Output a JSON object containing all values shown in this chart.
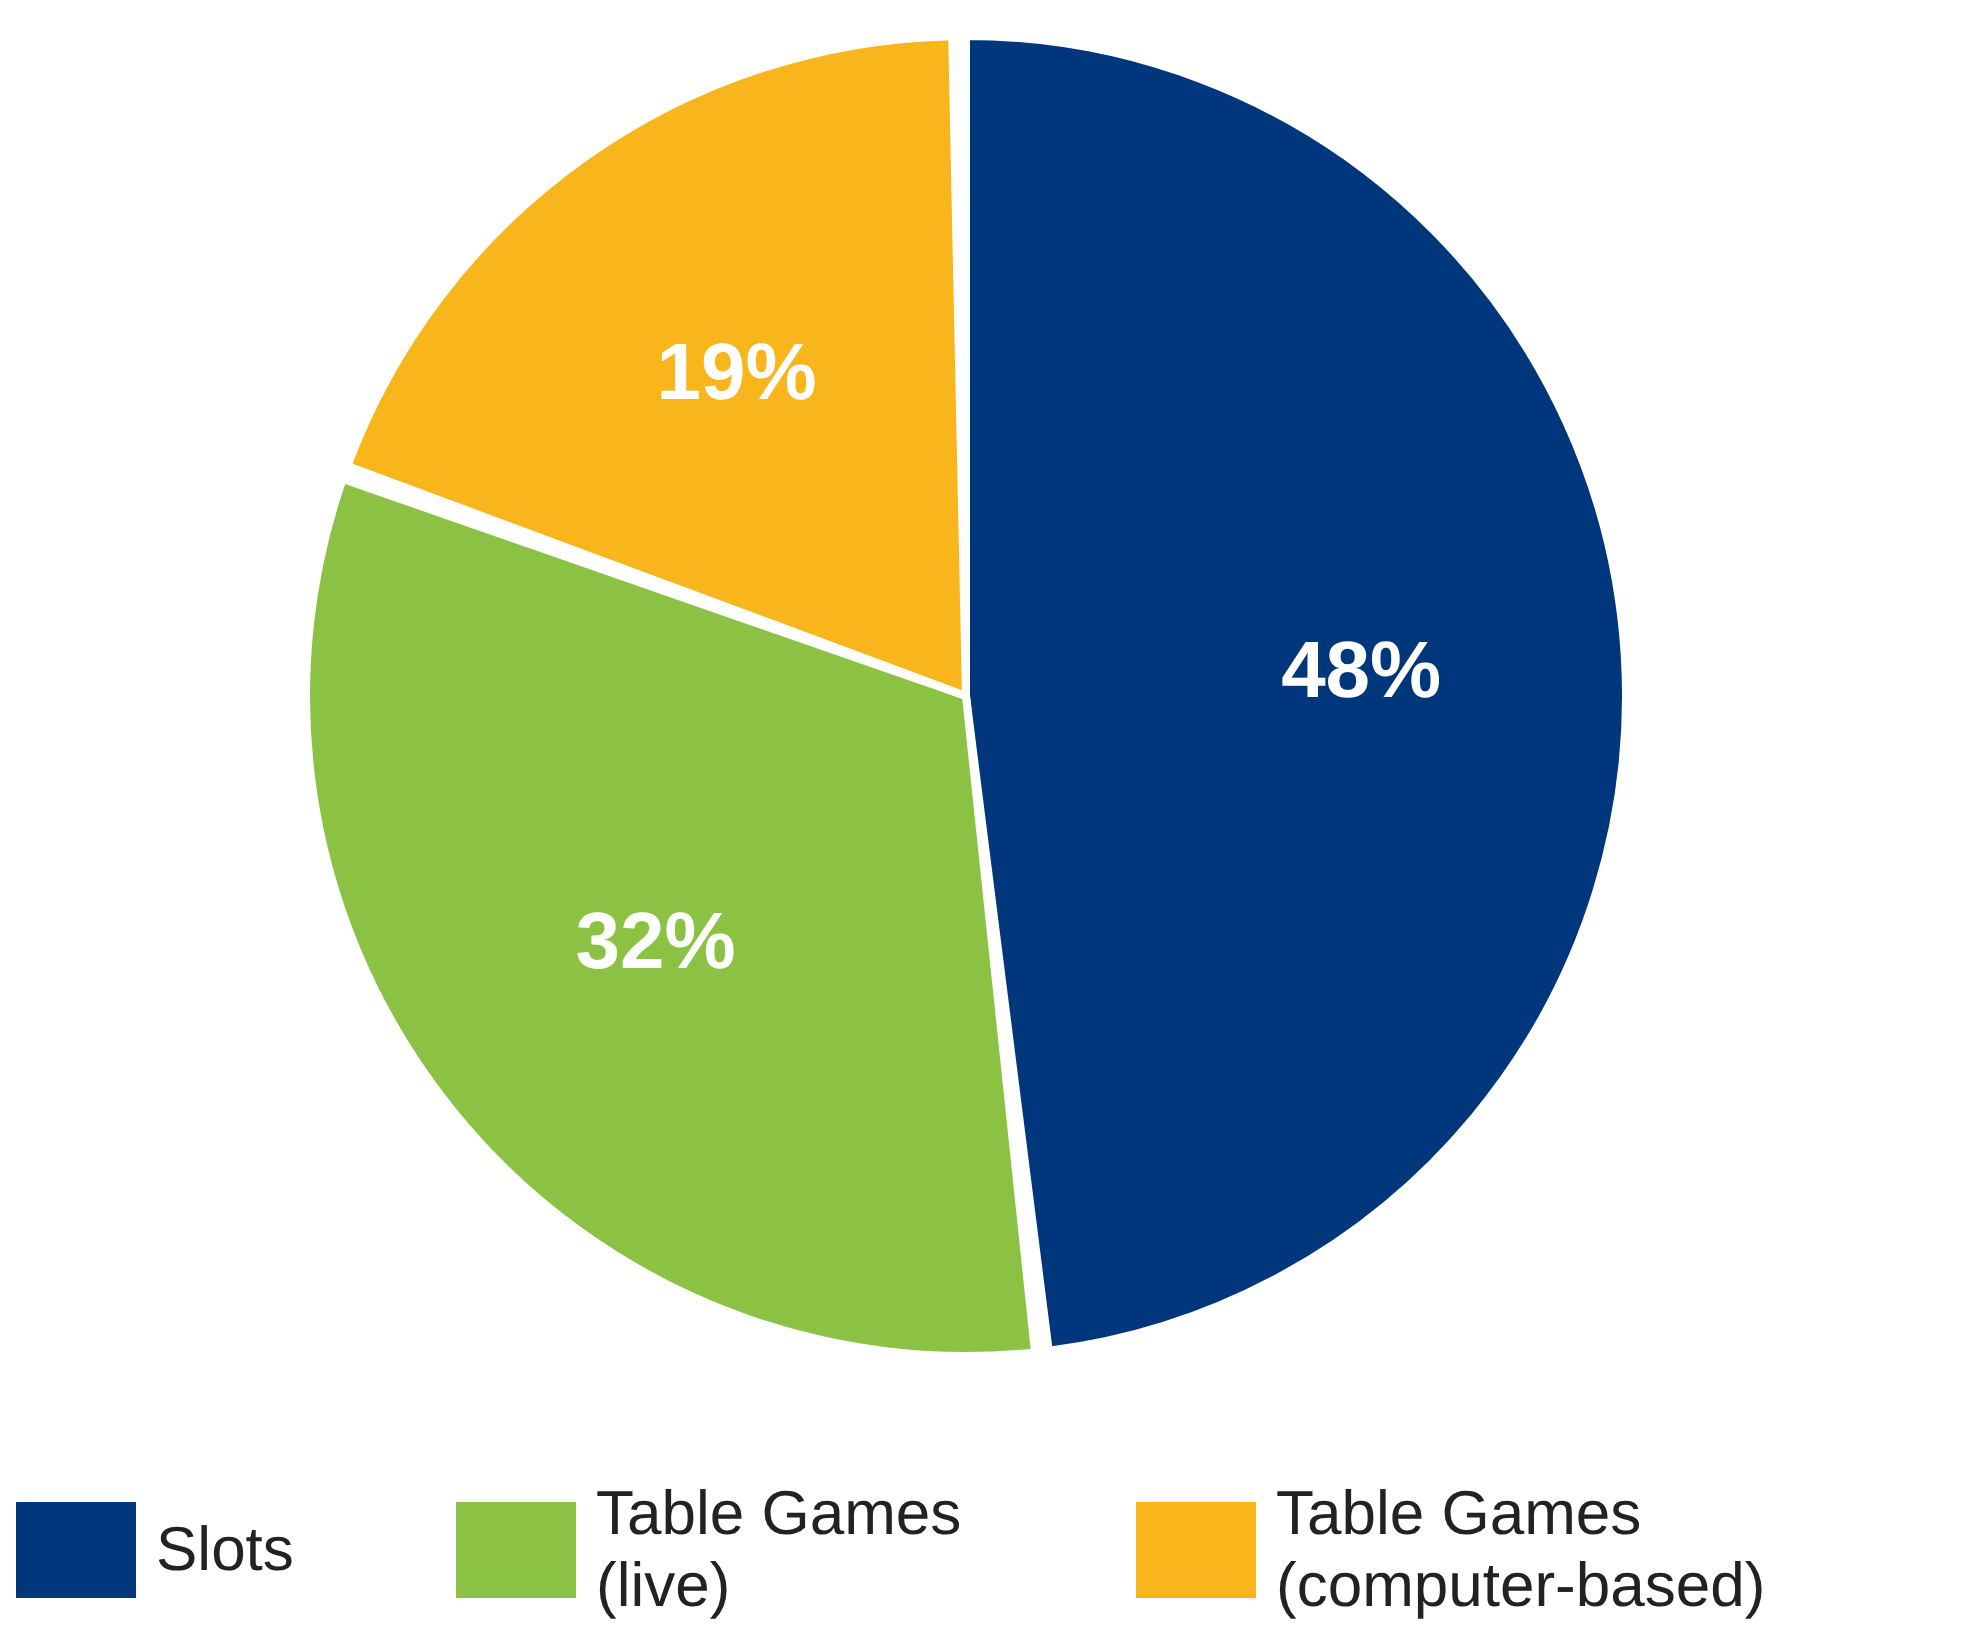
{
  "chart_data": {
    "type": "pie",
    "categories": [
      "Slots",
      "Table Games (live)",
      "Table Games (computer-based)"
    ],
    "values": [
      48,
      32,
      19
    ],
    "colors": [
      "#00367c",
      "#8cc243",
      "#f8b61c"
    ],
    "value_labels": [
      "48%",
      "32%",
      "19%"
    ],
    "legend": "bottom"
  }
}
